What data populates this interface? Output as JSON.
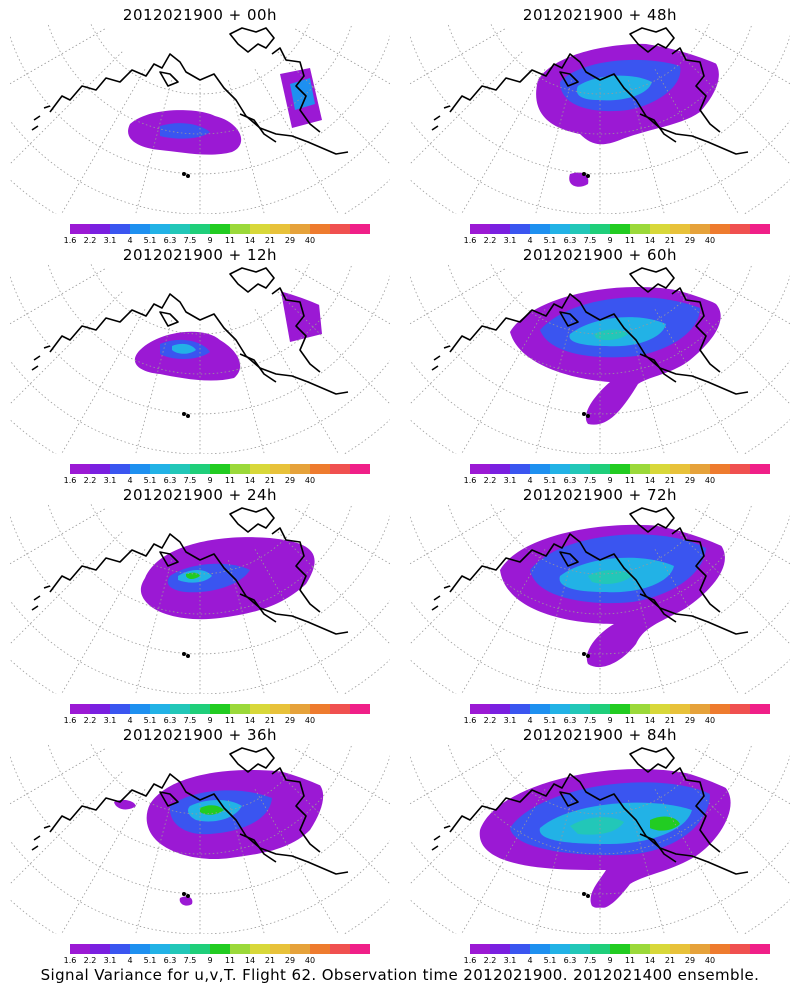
{
  "panels": [
    {
      "title": "2012021900 + 00h"
    },
    {
      "title": "2012021900 + 48h"
    },
    {
      "title": "2012021900 + 12h"
    },
    {
      "title": "2012021900 + 60h"
    },
    {
      "title": "2012021900 + 24h"
    },
    {
      "title": "2012021900 + 72h"
    },
    {
      "title": "2012021900 + 36h"
    },
    {
      "title": "2012021900 + 84h"
    }
  ],
  "colorbar": {
    "colors": [
      "#9b19d4",
      "#7a1fe0",
      "#3a55f0",
      "#1e90f0",
      "#22b2e6",
      "#22c7b8",
      "#1fcf7a",
      "#22cc22",
      "#9bd93a",
      "#d8d83a",
      "#e8c23a",
      "#e6a23a",
      "#ee7b2e",
      "#f05050",
      "#f02088"
    ],
    "labels": [
      "1.6",
      "2.2",
      "3.1",
      "4",
      "5.1",
      "6.3",
      "7.5",
      "9",
      "11",
      "14",
      "21",
      "29",
      "40"
    ]
  },
  "footer": "Signal Variance for u,v,T. Flight 62. Observation time 2012021900. 2012021400 ensemble."
}
